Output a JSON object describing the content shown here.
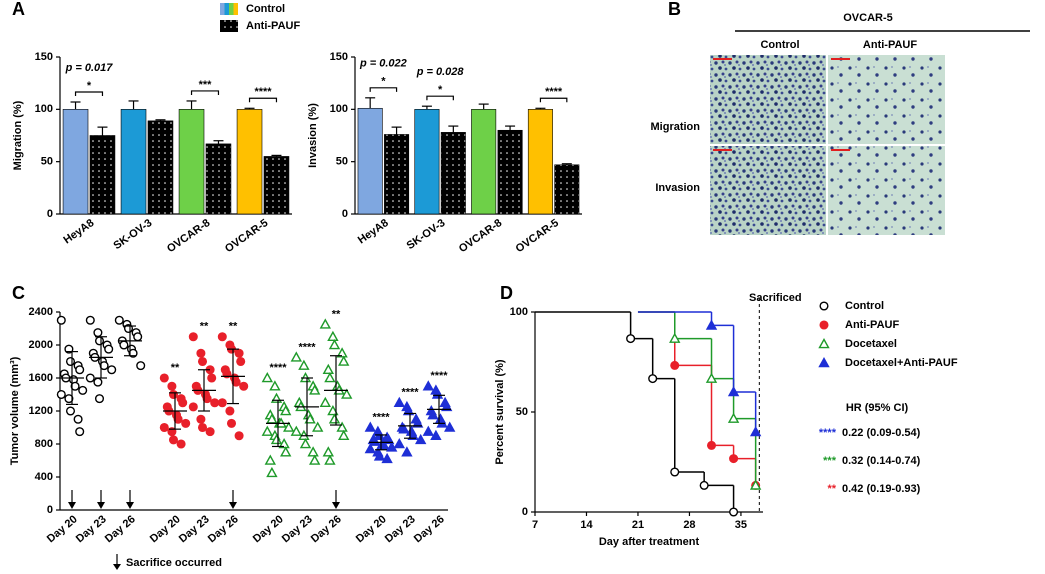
{
  "panels": [
    "A",
    "B",
    "C",
    "D"
  ],
  "panel_b": {
    "title": "OVCAR-5",
    "columns": [
      "Control",
      "Anti-PAUF"
    ],
    "rows": [
      "Migration",
      "Invasion"
    ]
  },
  "chart_data": [
    {
      "type": "bar",
      "ylabel": "Migration (%)",
      "categories": [
        "HeyA8",
        "SK-OV-3",
        "OVCAR-8",
        "OVCAR-5"
      ],
      "series": [
        {
          "name": "Control",
          "colors": [
            "#7fa7e0",
            "#1c9ad6",
            "#6ed048",
            "#ffc000"
          ],
          "values": [
            100,
            100,
            100,
            100
          ],
          "errors": [
            7,
            8,
            8,
            1
          ]
        },
        {
          "name": "Anti-PAUF",
          "color": "#000000",
          "values": [
            75,
            89,
            67,
            55
          ],
          "errors": [
            8,
            1,
            3,
            1
          ]
        }
      ],
      "significance": [
        "*",
        null,
        "***",
        "****"
      ],
      "p_values": [
        "p = 0.017",
        null,
        null,
        null
      ],
      "ylim": [
        0,
        150
      ],
      "yticks": [
        0,
        50,
        100,
        150
      ]
    },
    {
      "type": "bar",
      "ylabel": "Invasion (%)",
      "categories": [
        "HeyA8",
        "SK-OV-3",
        "OVCAR-8",
        "OVCAR-5"
      ],
      "series": [
        {
          "colors": [
            "#7fa7e0",
            "#1c9ad6",
            "#6ed048",
            "#ffc000"
          ],
          "values": [
            101,
            100,
            100,
            100
          ],
          "errors": [
            10,
            3,
            5,
            1
          ]
        },
        {
          "color": "#000000",
          "values": [
            76,
            78,
            80,
            47
          ],
          "errors": [
            7,
            6,
            4,
            1
          ]
        }
      ],
      "significance": [
        "*",
        "*",
        null,
        "****"
      ],
      "p_values": [
        "p = 0.022",
        "p = 0.028",
        null,
        null
      ],
      "ylim": [
        0,
        150
      ],
      "yticks": [
        0,
        50,
        100,
        150
      ]
    },
    {
      "type": "dot",
      "ylabel": "Tumor volume (mm³)",
      "categories": [
        "Day 20",
        "Day 23",
        "Day 26",
        "Day 20",
        "Day 23",
        "Day 26",
        "Day 20",
        "Day 23",
        "Day 26",
        "Day 20",
        "Day 23",
        "Day 26"
      ],
      "series": [
        {
          "name": "Control",
          "color": "#000000",
          "marker": "circle",
          "filled": false,
          "values": [
            [
              2300,
              1950,
              1800,
              1750,
              1700,
              1650,
              1600,
              1580,
              1500,
              1450,
              1400,
              1350,
              1200,
              1100,
              950
            ],
            [
              2300,
              2150,
              2050,
              2000,
              1950,
              1900,
              1850,
              1800,
              1750,
              1700,
              1600,
              1550,
              1350
            ],
            [
              2300,
              2250,
              2200,
              2150,
              2100,
              2050,
              2000,
              1950,
              1900,
              1750
            ],
            null,
            null,
            null,
            null,
            null,
            null,
            null,
            null,
            null
          ],
          "means": [
            1600,
            1850,
            2050,
            null,
            null,
            null,
            null,
            null,
            null,
            null,
            null,
            null
          ],
          "sds": [
            320,
            250,
            180,
            null,
            null,
            null,
            null,
            null,
            null,
            null,
            null,
            null
          ]
        },
        {
          "name": "Anti-PAUF",
          "color": "#e8202a",
          "marker": "circle",
          "filled": true,
          "values": [
            null,
            null,
            null,
            [
              1600,
              1500,
              1400,
              1350,
              1300,
              1250,
              1200,
              1150,
              1100,
              1050,
              1000,
              950,
              850,
              800
            ],
            [
              2100,
              1900,
              1800,
              1700,
              1600,
              1500,
              1450,
              1400,
              1350,
              1300,
              1250,
              1100,
              1000,
              950
            ],
            [
              2100,
              2000,
              1950,
              1900,
              1800,
              1700,
              1650,
              1600,
              1550,
              1500,
              1300,
              1200,
              1050,
              900
            ],
            null,
            null,
            null,
            null,
            null,
            null
          ],
          "means": [
            null,
            null,
            null,
            1200,
            1450,
            1620,
            null,
            null,
            null,
            null,
            null,
            null
          ],
          "sds": [
            null,
            null,
            null,
            220,
            250,
            330,
            null,
            null,
            null,
            null,
            null,
            null
          ]
        },
        {
          "name": "Docetaxel",
          "color": "#1f9a2a",
          "marker": "triangle",
          "filled": false,
          "values": [
            null,
            null,
            null,
            null,
            null,
            null,
            [
              1600,
              1500,
              1350,
              1250,
              1200,
              1150,
              1100,
              1050,
              1050,
              1000,
              950,
              900,
              850,
              800,
              700,
              600,
              450
            ],
            [
              1850,
              1750,
              1600,
              1500,
              1450,
              1300,
              1250,
              1150,
              1100,
              1000,
              950,
              900,
              800,
              700,
              600
            ],
            [
              2250,
              2100,
              2000,
              1900,
              1800,
              1700,
              1600,
              1500,
              1450,
              1400,
              1300,
              1200,
              1100,
              1000,
              900,
              700,
              600
            ],
            null,
            null,
            null
          ],
          "means": [
            null,
            null,
            null,
            null,
            null,
            null,
            1050,
            1250,
            1450,
            null,
            null,
            null
          ],
          "sds": [
            null,
            null,
            null,
            null,
            null,
            null,
            280,
            350,
            420,
            null,
            null,
            null
          ]
        },
        {
          "name": "Docetaxel+Anti-PAUF",
          "color": "#1e2fd6",
          "marker": "triangle",
          "filled": true,
          "values": [
            null,
            null,
            null,
            null,
            null,
            null,
            null,
            null,
            null,
            [
              1000,
              950,
              900,
              880,
              850,
              850,
              830,
              800,
              780,
              760,
              740,
              700,
              650,
              620
            ],
            [
              1300,
              1250,
              1200,
              1100,
              1050,
              1000,
              980,
              950,
              900,
              850,
              800,
              700
            ],
            [
              1500,
              1450,
              1400,
              1300,
              1250,
              1200,
              1150,
              1100,
              1050,
              1000,
              950,
              900
            ]
          ],
          "means": [
            null,
            null,
            null,
            null,
            null,
            null,
            null,
            null,
            null,
            820,
            1020,
            1220
          ],
          "sds": [
            null,
            null,
            null,
            null,
            null,
            null,
            null,
            null,
            null,
            90,
            150,
            170
          ]
        }
      ],
      "significance": [
        null,
        null,
        null,
        "**",
        "**",
        "**",
        "****",
        "****",
        "**",
        "****",
        "****",
        "****"
      ],
      "sacrifice": [
        true,
        true,
        true,
        false,
        false,
        true,
        false,
        false,
        true,
        false,
        false,
        false
      ],
      "sacrifice_legend": "Sacrifice occurred",
      "ylim": [
        0,
        2400
      ],
      "yticks": [
        0,
        400,
        800,
        1200,
        1600,
        2000,
        2400
      ]
    },
    {
      "type": "survival",
      "xlabel": "Day after treatment",
      "ylabel": "Percent survival (%)",
      "series": [
        {
          "name": "Control",
          "color": "#000000",
          "marker": "circle",
          "filled": false,
          "x": [
            7,
            20,
            23,
            26,
            30,
            34
          ],
          "values": [
            100,
            86.7,
            66.7,
            20,
            13.3,
            0
          ]
        },
        {
          "name": "Anti-PAUF",
          "color": "#e8202a",
          "marker": "circle",
          "filled": true,
          "x": [
            21,
            26,
            31,
            34,
            37
          ],
          "values": [
            100,
            73.3,
            33.3,
            26.7,
            13.3
          ]
        },
        {
          "name": "Docetaxel",
          "color": "#1f9a2a",
          "marker": "triangle",
          "filled": false,
          "x": [
            21,
            26,
            31,
            34,
            37
          ],
          "values": [
            100,
            86.7,
            66.7,
            46.7,
            13.3
          ]
        },
        {
          "name": "Docetaxel+Anti-PAUF",
          "color": "#1e2fd6",
          "marker": "triangle",
          "filled": true,
          "x": [
            21,
            31,
            34,
            37
          ],
          "values": [
            100,
            93.3,
            60,
            40
          ]
        }
      ],
      "vline": {
        "x": 37.5,
        "label": "Sacrificed"
      },
      "hr_title": "HR (95% CI)",
      "hr": [
        {
          "stars": "****",
          "color": "#1e2fd6",
          "text": "0.22 (0.09-0.54)"
        },
        {
          "stars": "***",
          "color": "#1f9a2a",
          "text": "0.32 (0.14-0.74)"
        },
        {
          "stars": "**",
          "color": "#e8202a",
          "text": "0.42 (0.19-0.93)"
        }
      ],
      "xlim": [
        7,
        38
      ],
      "xticks": [
        7,
        14,
        21,
        28,
        35
      ],
      "ylim": [
        0,
        100
      ],
      "yticks": [
        0,
        50,
        100
      ]
    }
  ]
}
